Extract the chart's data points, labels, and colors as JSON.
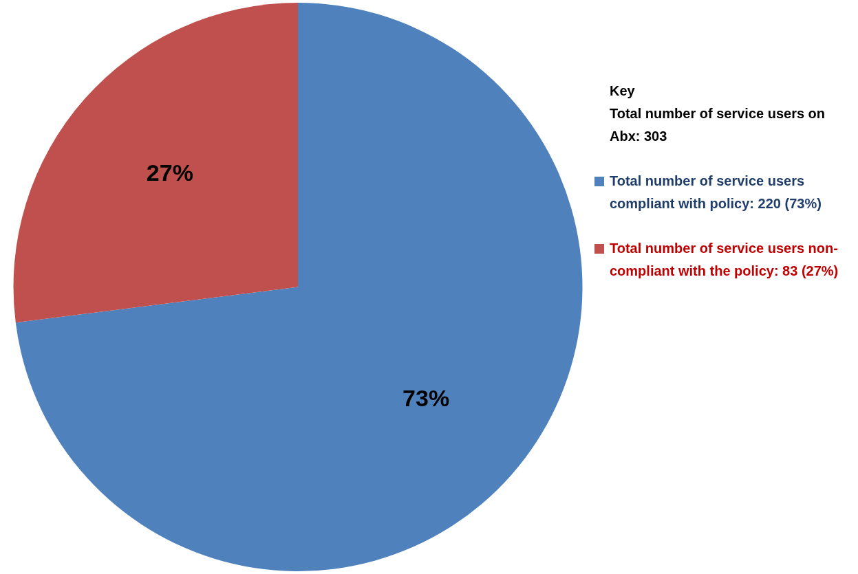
{
  "chart_data": {
    "type": "pie",
    "categories": [
      "Total number of service users compliant with policy: 220 (73%)",
      "Total number of service users non-compliant with the policy: 83 (27%)"
    ],
    "values": [
      73,
      27
    ],
    "colors": [
      "#4f81bd",
      "#c0504d"
    ],
    "value_labels": [
      "73%",
      "27%"
    ],
    "legend": "right",
    "legend_title": "Key",
    "annotations": [
      "Total number of service users on Abx: 303"
    ]
  }
}
